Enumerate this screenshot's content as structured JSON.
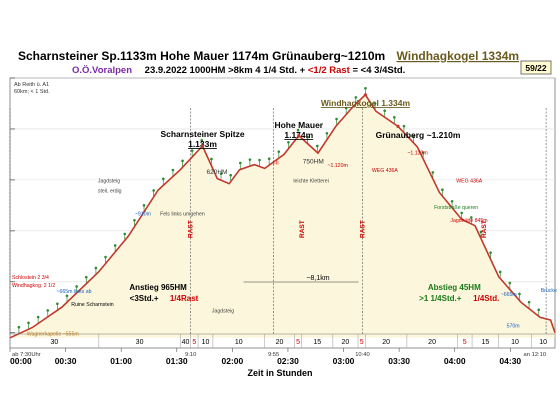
{
  "header": {
    "title_parts": [
      {
        "text": "Scharnsteiner Sp.1133m Hohe Mauer 1174m Grünauberg~1210m",
        "color": "#000000"
      },
      {
        "text": "Windhagkogel 1334m",
        "color": "#6b5a1e"
      }
    ],
    "sub_group": "O.Ö.Voralpen",
    "sub_stats": "23.9.2022     1000HM     >8km     4 1/4 Std. + ",
    "sub_rast": "<1/2 Rast",
    "sub_total": " = <4 3/4Std.",
    "page_badge": "59/22",
    "corner_note_1": "Ab Reith ü. A1",
    "corner_note_2": "60km; < 1 Std."
  },
  "colors": {
    "profile_line": "#c0392b",
    "fill": "#fbf6dc",
    "tree": "#2e8b2e",
    "rast": "#cc0000",
    "brown": "#6b5a1e",
    "green": "#1a7a1a",
    "blue": "#1a5fbf",
    "orange": "#c07a10"
  },
  "chart_data": {
    "type": "area",
    "x_unit": "Std:Min",
    "xlabel": "Zeit in Stunden",
    "x_ticks": [
      "00:00",
      "00:30",
      "01:00",
      "01:30",
      "02:00",
      "02:30",
      "03:00",
      "03:30",
      "04:00",
      "04:30"
    ],
    "profile": [
      {
        "t": 0,
        "h": 380
      },
      {
        "t": 15,
        "h": 420
      },
      {
        "t": 35,
        "h": 500
      },
      {
        "t": 60,
        "h": 640
      },
      {
        "t": 80,
        "h": 780
      },
      {
        "t": 100,
        "h": 960
      },
      {
        "t": 115,
        "h": 1040
      },
      {
        "t": 130,
        "h": 1133
      },
      {
        "t": 140,
        "h": 1005
      },
      {
        "t": 148,
        "h": 985
      },
      {
        "t": 155,
        "h": 1040
      },
      {
        "t": 165,
        "h": 1060
      },
      {
        "t": 172,
        "h": 1045
      },
      {
        "t": 185,
        "h": 1100
      },
      {
        "t": 195,
        "h": 1174
      },
      {
        "t": 208,
        "h": 1105
      },
      {
        "t": 220,
        "h": 1210
      },
      {
        "t": 232,
        "h": 1290
      },
      {
        "t": 240,
        "h": 1334
      },
      {
        "t": 247,
        "h": 1270
      },
      {
        "t": 262,
        "h": 1210
      },
      {
        "t": 275,
        "h": 1130
      },
      {
        "t": 290,
        "h": 950
      },
      {
        "t": 305,
        "h": 845
      },
      {
        "t": 314,
        "h": 820
      },
      {
        "t": 330,
        "h": 620
      },
      {
        "t": 345,
        "h": 520
      },
      {
        "t": 358,
        "h": 460
      },
      {
        "t": 365,
        "h": 450
      },
      {
        "t": 368,
        "h": 400
      }
    ],
    "peaks": [
      {
        "name": "Scharnsteiner Spitze",
        "elev": "1.133m",
        "label": "620HM",
        "t": 130,
        "color": "#000000"
      },
      {
        "name": "Hohe Mauer",
        "elev": "1.174m",
        "label": "750HM",
        "t": 195,
        "color": "#000000"
      },
      {
        "name": "Windhagkogel 1.334m",
        "elev": "",
        "label": "",
        "t": 240,
        "color": "#6b5a1e"
      },
      {
        "name": "Grünauberg ~1.210m",
        "elev": "",
        "label": "",
        "t": 262,
        "color": "#000000"
      }
    ],
    "rast_marks": [
      {
        "t": 122
      },
      {
        "t": 197
      },
      {
        "t": 238
      },
      {
        "t": 320
      }
    ],
    "annotations": [
      {
        "text": "Jagdsteig",
        "t": 58,
        "h": 990,
        "color": "#444444"
      },
      {
        "text": "steil, erdig",
        "t": 58,
        "h": 950,
        "color": "#444444"
      },
      {
        "text": "~910m",
        "t": 83,
        "h": 860,
        "color": "#1a5fbf"
      },
      {
        "text": "Fels links umgehen",
        "t": 100,
        "h": 860,
        "color": "#444444"
      },
      {
        "text": "I-II",
        "t": 176,
        "h": 1060,
        "color": "#cc0000"
      },
      {
        "text": "leichte Kletterei",
        "t": 190,
        "h": 990,
        "color": "#444444"
      },
      {
        "text": "~1.120m",
        "t": 213,
        "h": 1050,
        "color": "#cc0000"
      },
      {
        "text": "WEG 436A",
        "t": 243,
        "h": 1030,
        "color": "#cc0000"
      },
      {
        "text": "~1.130m",
        "t": 267,
        "h": 1100,
        "color": "#cc0000"
      },
      {
        "text": "WEG 436A",
        "t": 300,
        "h": 990,
        "color": "#cc0000"
      },
      {
        "text": "Forststraße queren",
        "t": 285,
        "h": 885,
        "color": "#1a7a1a"
      },
      {
        "text": "Jagdhütte 845m",
        "t": 296,
        "h": 835,
        "color": "#cc0000"
      },
      {
        "text": "Jagdsteig",
        "t": 135,
        "h": 480,
        "color": "#444444"
      },
      {
        "text": "~665m",
        "t": 330,
        "h": 545,
        "color": "#1a5fbf"
      },
      {
        "text": "Brücke",
        "t": 357,
        "h": 560,
        "color": "#1a5fbf"
      },
      {
        "text": "570m",
        "t": 334,
        "h": 420,
        "color": "#1a5fbf"
      },
      {
        "text": "Ruine Scharnstein",
        "t": 40,
        "h": 505,
        "color": "#000000"
      },
      {
        "text": "~665m links ab",
        "t": 30,
        "h": 555,
        "color": "#1a5fbf"
      },
      {
        "text": "Schlostein 2 3/4",
        "t": 0,
        "h": 610,
        "color": "#cc0000"
      },
      {
        "text": "Windhagkog. 2 1/2",
        "t": 0,
        "h": 580,
        "color": "#cc0000"
      },
      {
        "text": "Wagnerkapelle ~555m",
        "t": 10,
        "h": 390,
        "color": "#c07a10"
      }
    ],
    "distance_label": "~8,1km",
    "ascent_box": {
      "line1": "Anstieg 965HM",
      "line2a": "<3Std.+ ",
      "line2b": "1/4Rast"
    },
    "descent_box": {
      "line1": "Abstieg 45HM",
      "line2a": ">1 1/4Std.+ ",
      "line2b": "1/4Std."
    },
    "time_marks": [
      {
        "t": 0,
        "label": "ab 7:30Uhr"
      },
      {
        "t": 122,
        "label": "9:10"
      },
      {
        "t": 178,
        "label": "9:55"
      },
      {
        "t": 238,
        "label": "10:40"
      },
      {
        "t": 362,
        "label": "an 12:10"
      }
    ],
    "segments": [
      {
        "from": 0,
        "to": 60,
        "label": "30"
      },
      {
        "from": 60,
        "to": 115,
        "label": "30"
      },
      {
        "from": 115,
        "to": 122,
        "label": "40"
      },
      {
        "from": 122,
        "to": 127,
        "label": "5"
      },
      {
        "from": 127,
        "to": 137,
        "label": "10"
      },
      {
        "from": 137,
        "to": 172,
        "label": "10"
      },
      {
        "from": 172,
        "to": 192,
        "label": "20"
      },
      {
        "from": 192,
        "to": 197,
        "label": "5"
      },
      {
        "from": 197,
        "to": 218,
        "label": "15"
      },
      {
        "from": 218,
        "to": 235,
        "label": "20"
      },
      {
        "from": 235,
        "to": 240,
        "label": "5"
      },
      {
        "from": 240,
        "to": 268,
        "label": "20"
      },
      {
        "from": 268,
        "to": 302,
        "label": "20"
      },
      {
        "from": 302,
        "to": 312,
        "label": "5"
      },
      {
        "from": 312,
        "to": 330,
        "label": "15"
      },
      {
        "from": 330,
        "to": 352,
        "label": "10"
      },
      {
        "from": 352,
        "to": 368,
        "label": "10"
      }
    ],
    "ylim": [
      340,
      1400
    ],
    "xlim": [
      0,
      368
    ],
    "y_ticks": [
      400,
      600,
      800,
      1000,
      1200,
      1400
    ]
  }
}
